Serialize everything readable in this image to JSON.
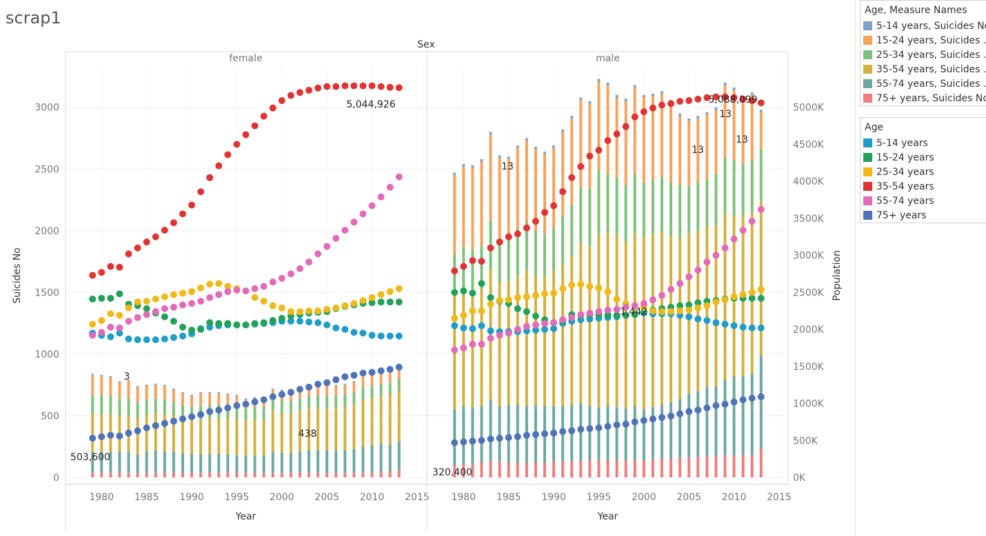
{
  "worksheet": {
    "title": "scrap1"
  },
  "chart_data": {
    "type": "bar",
    "column_header": "Sex",
    "panes": [
      "female",
      "male"
    ],
    "xlabel": "Year",
    "x_ticks": [
      1980,
      1985,
      1990,
      1995,
      2000,
      2005,
      2010,
      2015
    ],
    "years": [
      1979,
      1980,
      1981,
      1982,
      1983,
      1984,
      1985,
      1986,
      1987,
      1988,
      1989,
      1990,
      1991,
      1992,
      1993,
      1994,
      1995,
      1996,
      1997,
      1998,
      1999,
      2000,
      2001,
      2002,
      2003,
      2004,
      2005,
      2006,
      2007,
      2008,
      2009,
      2010,
      2011,
      2012,
      2013
    ],
    "left_axis": {
      "label": "Suicides No",
      "ylim": [
        0,
        3300
      ],
      "ticks": [
        0,
        500,
        1000,
        1500,
        2000,
        2500,
        3000
      ],
      "tick_labels": [
        "0",
        "500",
        "1000",
        "1500",
        "2000",
        "2500",
        "3000"
      ]
    },
    "right_axis": {
      "label": "Population",
      "ylim": [
        0,
        5500000
      ],
      "ticks": [
        0,
        500000,
        1000000,
        1500000,
        2000000,
        2500000,
        3000000,
        3500000,
        4000000,
        4500000,
        5000000
      ],
      "tick_labels": [
        "0K",
        "500K",
        "1000K",
        "1500K",
        "2000K",
        "2500K",
        "3000K",
        "3500K",
        "4000K",
        "4500K",
        "5000K"
      ]
    },
    "bar_series": [
      {
        "name": "5-14 years, Suicides No",
        "color": "#7ca3c7"
      },
      {
        "name": "15-24 years, Suicides No",
        "color": "#f7a35c"
      },
      {
        "name": "25-34 years, Suicides No",
        "color": "#7fc17b"
      },
      {
        "name": "35-54 years, Suicides No",
        "color": "#d4b13f"
      },
      {
        "name": "55-74 years, Suicides No",
        "color": "#6ea8a0"
      },
      {
        "name": "75+ years, Suicides No",
        "color": "#ee7d7d"
      }
    ],
    "bar_values": {
      "female": {
        "5-14 years, Suicides No": [
          10,
          10,
          10,
          10,
          10,
          10,
          10,
          10,
          10,
          10,
          10,
          10,
          10,
          10,
          10,
          10,
          10,
          10,
          10,
          10,
          10,
          10,
          10,
          10,
          10,
          10,
          10,
          10,
          10,
          10,
          10,
          10,
          10,
          10,
          13
        ],
        "15-24 years, Suicides No": [
          160,
          150,
          150,
          130,
          140,
          120,
          110,
          110,
          110,
          100,
          90,
          80,
          100,
          90,
          90,
          80,
          80,
          70,
          70,
          70,
          70,
          80,
          80,
          80,
          80,
          80,
          80,
          80,
          80,
          80,
          90,
          90,
          90,
          90,
          90
        ],
        "25-34 years, Suicides No": [
          160,
          160,
          150,
          140,
          140,
          130,
          120,
          120,
          120,
          110,
          110,
          110,
          110,
          110,
          110,
          110,
          110,
          100,
          100,
          100,
          100,
          100,
          100,
          100,
          100,
          100,
          100,
          100,
          100,
          100,
          100,
          100,
          100,
          100,
          100
        ],
        "35-54 years, Suicides No": [
          300,
          300,
          300,
          290,
          290,
          290,
          300,
          300,
          300,
          290,
          280,
          280,
          280,
          290,
          290,
          290,
          290,
          280,
          290,
          290,
          330,
          320,
          320,
          330,
          340,
          350,
          340,
          340,
          350,
          360,
          380,
          380,
          390,
          400,
          410
        ],
        "55-74 years, Suicides No": [
          170,
          170,
          170,
          170,
          170,
          150,
          170,
          180,
          170,
          170,
          160,
          150,
          150,
          150,
          150,
          150,
          140,
          140,
          140,
          140,
          170,
          160,
          160,
          170,
          180,
          180,
          180,
          180,
          180,
          190,
          210,
          220,
          220,
          220,
          230
        ],
        "75+ years, Suicides No": [
          40,
          40,
          40,
          40,
          40,
          40,
          40,
          40,
          40,
          40,
          40,
          40,
          40,
          40,
          40,
          40,
          40,
          40,
          40,
          40,
          40,
          40,
          40,
          40,
          40,
          40,
          40,
          40,
          40,
          40,
          40,
          40,
          50,
          50,
          60
        ]
      },
      "male": {
        "5-14 years, Suicides No": [
          20,
          20,
          20,
          20,
          20,
          20,
          20,
          20,
          20,
          20,
          20,
          20,
          20,
          20,
          20,
          20,
          20,
          20,
          20,
          20,
          20,
          20,
          20,
          20,
          20,
          20,
          20,
          20,
          20,
          20,
          20,
          20,
          20,
          20,
          20
        ],
        "15-24 years, Suicides No": [
          640,
          650,
          660,
          690,
          700,
          650,
          640,
          650,
          660,
          660,
          650,
          650,
          680,
          700,
          710,
          690,
          720,
          720,
          650,
          680,
          700,
          690,
          680,
          680,
          650,
          560,
          530,
          520,
          520,
          520,
          590,
          570,
          530,
          520,
          300
        ],
        "25-34 years, Suicides No": [
          310,
          340,
          330,
          340,
          400,
          360,
          350,
          380,
          390,
          370,
          340,
          340,
          390,
          420,
          450,
          460,
          520,
          480,
          460,
          460,
          480,
          440,
          440,
          440,
          430,
          430,
          380,
          390,
          390,
          420,
          450,
          450,
          420,
          440,
          420
        ],
        "35-54 years, Suicides No": [
          950,
          950,
          950,
          950,
          1050,
          1000,
          1000,
          1050,
          1100,
          1050,
          1050,
          1100,
          1150,
          1200,
          1300,
          1300,
          1400,
          1400,
          1400,
          1350,
          1400,
          1400,
          1400,
          1400,
          1350,
          1300,
          1300,
          1300,
          1300,
          1300,
          1350,
          1300,
          1300,
          1300,
          1250
        ],
        "55-74 years, Suicides No": [
          450,
          470,
          460,
          460,
          500,
          450,
          470,
          470,
          460,
          460,
          460,
          450,
          450,
          460,
          470,
          440,
          430,
          440,
          430,
          420,
          440,
          410,
          420,
          440,
          460,
          480,
          520,
          530,
          560,
          570,
          610,
          640,
          640,
          660,
          760
        ],
        "75+ years, Suicides No": [
          100,
          110,
          110,
          120,
          130,
          130,
          120,
          120,
          120,
          120,
          120,
          130,
          130,
          130,
          130,
          140,
          140,
          140,
          140,
          140,
          140,
          140,
          150,
          150,
          150,
          160,
          160,
          170,
          170,
          170,
          180,
          180,
          180,
          180,
          230
        ]
      }
    },
    "dot_series": [
      {
        "name": "5-14 years",
        "color": "#1f9dc8"
      },
      {
        "name": "15-24 years",
        "color": "#23a15a"
      },
      {
        "name": "25-34 years",
        "color": "#f0b918"
      },
      {
        "name": "35-54 years",
        "color": "#e03434"
      },
      {
        "name": "55-74 years",
        "color": "#e36ab8"
      },
      {
        "name": "75+ years",
        "color": "#4f73b8"
      }
    ],
    "population": {
      "female": {
        "5-14 years": [
          1950000,
          1920000,
          1900000,
          1950000,
          1870000,
          1860000,
          1860000,
          1860000,
          1870000,
          1890000,
          1910000,
          1940000,
          2010000,
          2030000,
          2050000,
          2060000,
          2060000,
          2060000,
          2070000,
          2080000,
          2090000,
          2110000,
          2110000,
          2110000,
          2100000,
          2090000,
          2060000,
          2020000,
          2000000,
          1960000,
          1950000,
          1920000,
          1910000,
          1910000,
          1910000
        ],
        "15-24 years": [
          2410000,
          2420000,
          2420000,
          2480000,
          2340000,
          2320000,
          2280000,
          2220000,
          2170000,
          2110000,
          2030000,
          1990000,
          2000000,
          2090000,
          2080000,
          2080000,
          2060000,
          2060000,
          2080000,
          2090000,
          2120000,
          2150000,
          2180000,
          2200000,
          2220000,
          2230000,
          2240000,
          2280000,
          2310000,
          2330000,
          2350000,
          2360000,
          2370000,
          2370000,
          2370000
        ],
        "25-34 years": [
          2070000,
          2120000,
          2210000,
          2190000,
          2290000,
          2370000,
          2380000,
          2410000,
          2440000,
          2470000,
          2490000,
          2510000,
          2560000,
          2610000,
          2620000,
          2580000,
          2550000,
          2520000,
          2430000,
          2380000,
          2320000,
          2290000,
          2240000,
          2240000,
          2250000,
          2250000,
          2270000,
          2290000,
          2320000,
          2350000,
          2390000,
          2430000,
          2470000,
          2510000,
          2550000
        ],
        "35-54 years": [
          2730000,
          2770000,
          2850000,
          2840000,
          3020000,
          3100000,
          3180000,
          3250000,
          3340000,
          3440000,
          3560000,
          3680000,
          3860000,
          4050000,
          4210000,
          4360000,
          4500000,
          4630000,
          4750000,
          4880000,
          4990000,
          5090000,
          5160000,
          5200000,
          5230000,
          5260000,
          5280000,
          5280000,
          5290000,
          5290000,
          5290000,
          5290000,
          5280000,
          5270000,
          5265000
        ],
        "55-74 years": [
          1920000,
          1960000,
          2030000,
          2020000,
          2110000,
          2160000,
          2200000,
          2240000,
          2280000,
          2300000,
          2330000,
          2350000,
          2380000,
          2430000,
          2470000,
          2510000,
          2530000,
          2520000,
          2550000,
          2580000,
          2640000,
          2690000,
          2750000,
          2820000,
          2910000,
          3020000,
          3120000,
          3230000,
          3340000,
          3450000,
          3560000,
          3670000,
          3790000,
          3920000,
          4060000
        ],
        "75+ years": [
          530000,
          550000,
          570000,
          560000,
          600000,
          630000,
          670000,
          700000,
          730000,
          760000,
          790000,
          820000,
          850000,
          890000,
          910000,
          940000,
          970000,
          990000,
          1020000,
          1050000,
          1090000,
          1120000,
          1150000,
          1190000,
          1220000,
          1260000,
          1280000,
          1320000,
          1360000,
          1380000,
          1410000,
          1420000,
          1440000,
          1460000,
          1490000
        ]
      },
      "male": {
        "5-14 years": [
          2050000,
          2020000,
          2010000,
          2050000,
          1980000,
          1970000,
          1970000,
          1970000,
          1980000,
          1990000,
          2000000,
          2010000,
          2080000,
          2110000,
          2130000,
          2140000,
          2150000,
          2160000,
          2170000,
          2190000,
          2200000,
          2220000,
          2210000,
          2210000,
          2210000,
          2190000,
          2170000,
          2140000,
          2120000,
          2090000,
          2070000,
          2050000,
          2030000,
          2020000,
          2020000
        ],
        "15-24 years": [
          2500000,
          2520000,
          2490000,
          2620000,
          2430000,
          2380000,
          2350000,
          2280000,
          2240000,
          2180000,
          2130000,
          2090000,
          2110000,
          2200000,
          2190000,
          2200000,
          2200000,
          2200000,
          2190000,
          2190000,
          2200000,
          2240000,
          2260000,
          2280000,
          2300000,
          2320000,
          2330000,
          2360000,
          2380000,
          2390000,
          2410000,
          2420000,
          2420000,
          2420000,
          2420000
        ],
        "25-34 years": [
          2150000,
          2190000,
          2250000,
          2250000,
          2340000,
          2390000,
          2400000,
          2430000,
          2440000,
          2460000,
          2480000,
          2490000,
          2550000,
          2600000,
          2610000,
          2580000,
          2560000,
          2510000,
          2410000,
          2350000,
          2320000,
          2300000,
          2250000,
          2240000,
          2240000,
          2250000,
          2260000,
          2290000,
          2320000,
          2370000,
          2400000,
          2440000,
          2470000,
          2500000,
          2540000
        ],
        "35-54 years": [
          2790000,
          2850000,
          2930000,
          2920000,
          3100000,
          3180000,
          3250000,
          3290000,
          3370000,
          3460000,
          3580000,
          3670000,
          3860000,
          4050000,
          4200000,
          4340000,
          4420000,
          4550000,
          4640000,
          4740000,
          4870000,
          4940000,
          4990000,
          5030000,
          5050000,
          5080000,
          5090000,
          5110000,
          5130000,
          5140000,
          5140000,
          5130000,
          5110000,
          5090000,
          5060000
        ],
        "55-74 years": [
          1720000,
          1750000,
          1800000,
          1800000,
          1880000,
          1920000,
          1950000,
          2000000,
          2040000,
          2060000,
          2080000,
          2090000,
          2130000,
          2160000,
          2200000,
          2220000,
          2240000,
          2260000,
          2270000,
          2300000,
          2320000,
          2350000,
          2400000,
          2460000,
          2540000,
          2620000,
          2710000,
          2800000,
          2910000,
          3000000,
          3100000,
          3220000,
          3340000,
          3460000,
          3620000
        ],
        "75+ years": [
          470000,
          480000,
          490000,
          500000,
          520000,
          530000,
          540000,
          550000,
          570000,
          580000,
          590000,
          600000,
          620000,
          630000,
          650000,
          660000,
          670000,
          690000,
          710000,
          720000,
          750000,
          770000,
          790000,
          810000,
          830000,
          860000,
          890000,
          910000,
          940000,
          970000,
          990000,
          1020000,
          1050000,
          1070000,
          1090000
        ]
      }
    },
    "annotations": [
      {
        "pane": "female",
        "text": "5,044,926"
      },
      {
        "pane": "female",
        "text": "3"
      },
      {
        "pane": "female",
        "text": "438"
      },
      {
        "pane": "female",
        "text": "503,600"
      },
      {
        "pane": "male",
        "text": "5,088,099"
      },
      {
        "pane": "male",
        "text": "13"
      },
      {
        "pane": "male",
        "text": "13"
      },
      {
        "pane": "male",
        "text": "13"
      },
      {
        "pane": "male",
        "text": "13"
      },
      {
        "pane": "male",
        "text": "1,442"
      },
      {
        "pane": "male",
        "text": "320,400"
      }
    ]
  },
  "legends": {
    "bars": {
      "title": "Age, Measure Names",
      "items": [
        {
          "label": "5-14 years, Suicides No",
          "color": "#7ca3c7"
        },
        {
          "label": "15-24 years, Suicides ...",
          "color": "#f7a35c"
        },
        {
          "label": "25-34 years, Suicides ...",
          "color": "#7fc17b"
        },
        {
          "label": "35-54 years, Suicides ...",
          "color": "#d4b13f"
        },
        {
          "label": "55-74 years, Suicides ...",
          "color": "#6ea8a0"
        },
        {
          "label": "75+ years, Suicides No",
          "color": "#ee7d7d"
        }
      ]
    },
    "dots": {
      "title": "Age",
      "items": [
        {
          "label": "5-14 years",
          "color": "#1f9dc8"
        },
        {
          "label": "15-24 years",
          "color": "#23a15a"
        },
        {
          "label": "25-34 years",
          "color": "#f0b918"
        },
        {
          "label": "35-54 years",
          "color": "#e03434"
        },
        {
          "label": "55-74 years",
          "color": "#e36ab8"
        },
        {
          "label": "75+ years",
          "color": "#4f73b8"
        }
      ]
    }
  }
}
